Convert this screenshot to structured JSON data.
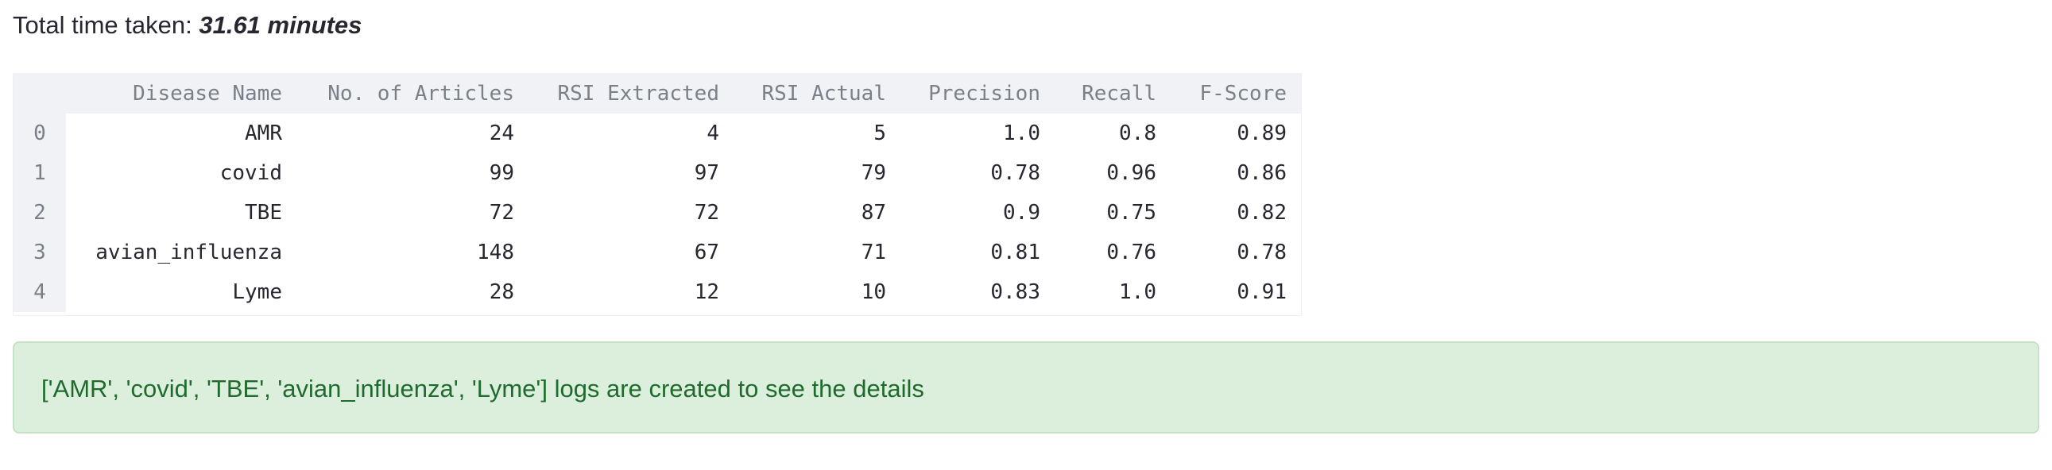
{
  "header": {
    "total_time_label": "Total time taken: ",
    "total_time_value": "31.61 minutes"
  },
  "table": {
    "columns": [
      "",
      "Disease Name",
      "No. of Articles",
      "RSI Extracted",
      "RSI Actual",
      "Precision",
      "Recall",
      "F-Score"
    ],
    "rows": [
      [
        "0",
        "AMR",
        "24",
        "4",
        "5",
        "1.0",
        "0.8",
        "0.89"
      ],
      [
        "1",
        "covid",
        "99",
        "97",
        "79",
        "0.78",
        "0.96",
        "0.86"
      ],
      [
        "2",
        "TBE",
        "72",
        "72",
        "87",
        "0.9",
        "0.75",
        "0.82"
      ],
      [
        "3",
        "avian_influenza",
        "148",
        "67",
        "71",
        "0.81",
        "0.76",
        "0.78"
      ],
      [
        "4",
        "Lyme",
        "28",
        "12",
        "10",
        "0.83",
        "1.0",
        "0.91"
      ]
    ]
  },
  "success": {
    "message": "['AMR', 'covid', 'TBE', 'avian_influenza', 'Lyme'] logs are created to see the details"
  },
  "colors": {
    "success_bg": "#dcefdd",
    "success_text": "#1f6b2d",
    "header_bg": "#f0f2f6"
  }
}
